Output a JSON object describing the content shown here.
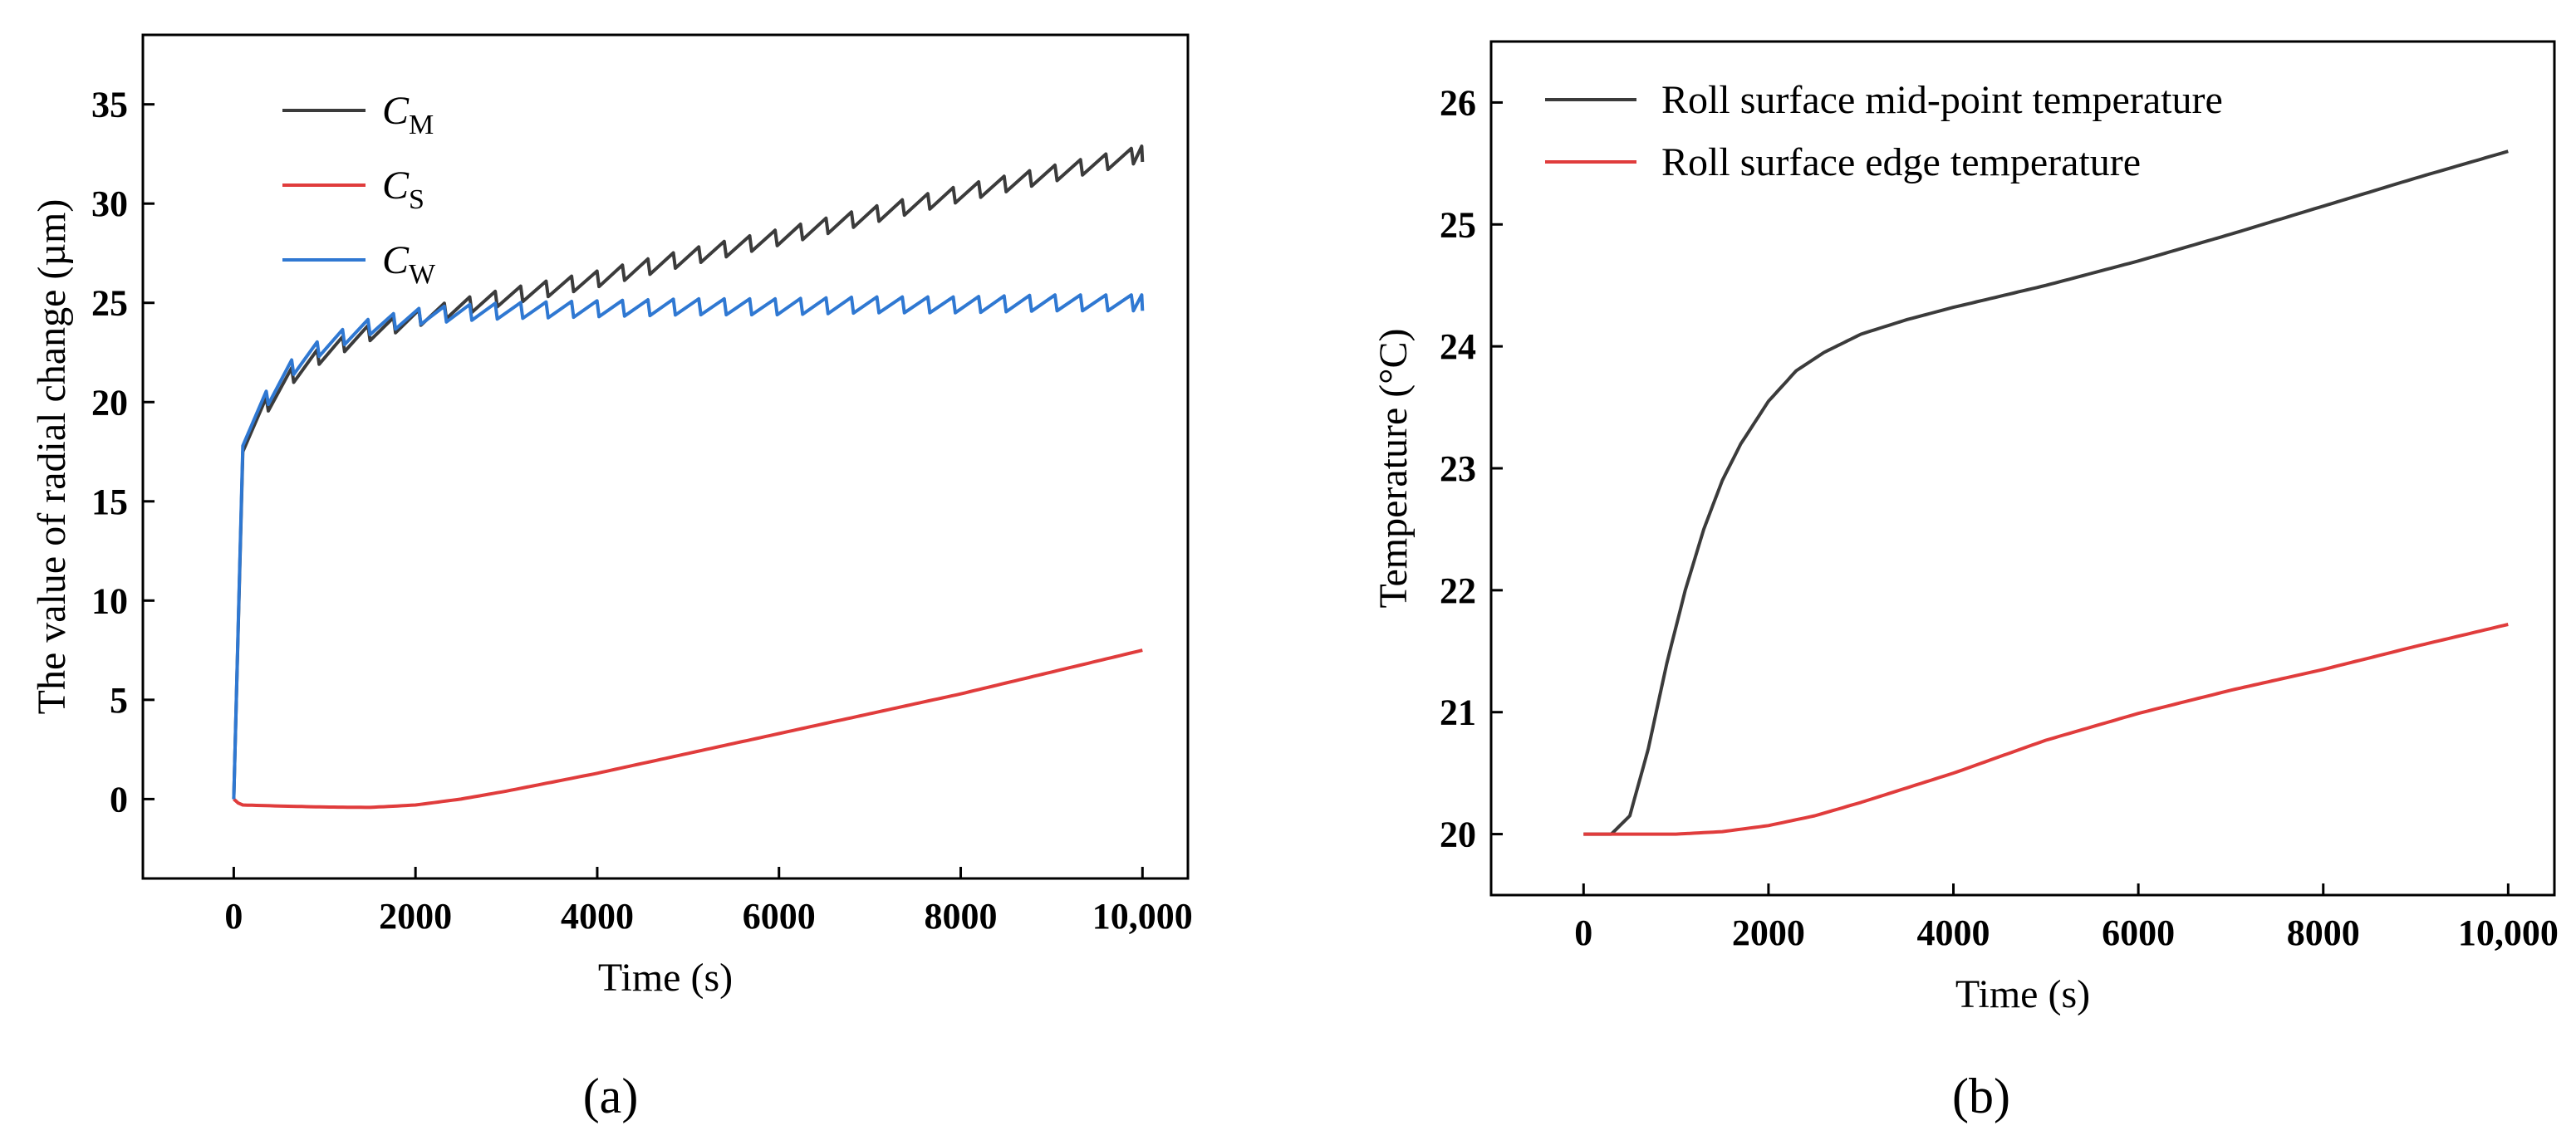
{
  "chart_data": [
    {
      "type": "line",
      "panel_label": "(a)",
      "xlabel": "Time (s)",
      "ylabel": "The value of radial change (µm)",
      "xlim": [
        -1000,
        10500
      ],
      "ylim": [
        -4,
        38.5
      ],
      "xticks": [
        0,
        2000,
        4000,
        6000,
        8000,
        10000
      ],
      "xtick_labels": [
        "0",
        "2000",
        "4000",
        "6000",
        "8000",
        "10,000"
      ],
      "yticks": [
        0,
        5,
        10,
        15,
        20,
        25,
        30,
        35
      ],
      "ytick_labels": [
        "0",
        "5",
        "10",
        "15",
        "20",
        "25",
        "30",
        "35"
      ],
      "legend_position": "top-left",
      "series": [
        {
          "name": "C_M",
          "legend_main": "C",
          "legend_sub": "M",
          "color": "#3b3b3b",
          "x": [
            0,
            100,
            300,
            600,
            1000,
            1500,
            2000,
            2500,
            3000,
            4000,
            5000,
            6000,
            7000,
            8000,
            9000,
            10000
          ],
          "y": [
            0,
            17.5,
            19.5,
            21.2,
            22.5,
            23.5,
            24.2,
            24.8,
            25.3,
            26.2,
            27.3,
            28.3,
            29.4,
            30.5,
            31.5,
            32.5
          ],
          "sawtooth_amplitude": 0.8
        },
        {
          "name": "C_S",
          "legend_main": "C",
          "legend_sub": "S",
          "color": "#e03c3c",
          "x": [
            0,
            50,
            100,
            500,
            1000,
            1500,
            2000,
            2500,
            3000,
            4000,
            5000,
            6000,
            7000,
            8000,
            9000,
            10000
          ],
          "y": [
            0,
            -0.2,
            -0.3,
            -0.35,
            -0.4,
            -0.42,
            -0.3,
            0.0,
            0.4,
            1.3,
            2.3,
            3.3,
            4.3,
            5.3,
            6.4,
            7.5
          ],
          "sawtooth_amplitude": 0
        },
        {
          "name": "C_W",
          "legend_main": "C",
          "legend_sub": "W",
          "color": "#2f78d2",
          "x": [
            0,
            100,
            300,
            600,
            1000,
            1500,
            2000,
            2500,
            3000,
            4000,
            5000,
            6000,
            7000,
            8000,
            9000,
            10000
          ],
          "y": [
            0,
            17.8,
            19.8,
            21.6,
            22.9,
            23.8,
            24.3,
            24.5,
            24.6,
            24.7,
            24.8,
            24.8,
            24.9,
            24.9,
            25.0,
            25.0
          ],
          "sawtooth_amplitude": 0.8
        }
      ]
    },
    {
      "type": "line",
      "panel_label": "(b)",
      "xlabel": "Time (s)",
      "ylabel": "Temperature (°C)",
      "xlim": [
        -1000,
        10500
      ],
      "ylim": [
        19.5,
        26.5
      ],
      "xticks": [
        0,
        2000,
        4000,
        6000,
        8000,
        10000
      ],
      "xtick_labels": [
        "0",
        "2000",
        "4000",
        "6000",
        "8000",
        "10,000"
      ],
      "yticks": [
        20,
        21,
        22,
        23,
        24,
        25,
        26
      ],
      "ytick_labels": [
        "20",
        "21",
        "22",
        "23",
        "24",
        "25",
        "26"
      ],
      "legend_position": "top-left",
      "series": [
        {
          "name": "Roll surface mid-point temperature",
          "color": "#3b3b3b",
          "x": [
            0,
            300,
            500,
            700,
            900,
            1100,
            1300,
            1500,
            1700,
            2000,
            2300,
            2600,
            3000,
            3500,
            4000,
            5000,
            6000,
            7000,
            8000,
            9000,
            10000
          ],
          "y": [
            20.0,
            20.0,
            20.15,
            20.7,
            21.4,
            22.0,
            22.5,
            22.9,
            23.2,
            23.55,
            23.8,
            23.95,
            24.1,
            24.22,
            24.32,
            24.5,
            24.7,
            24.92,
            25.15,
            25.38,
            25.6
          ]
        },
        {
          "name": "Roll surface edge temperature",
          "color": "#e03c3c",
          "x": [
            0,
            500,
            1000,
            1500,
            2000,
            2500,
            3000,
            3500,
            4000,
            5000,
            6000,
            7000,
            8000,
            9000,
            10000
          ],
          "y": [
            20.0,
            20.0,
            20.0,
            20.02,
            20.07,
            20.15,
            20.26,
            20.38,
            20.5,
            20.77,
            20.99,
            21.18,
            21.35,
            21.54,
            21.72
          ]
        }
      ]
    }
  ]
}
